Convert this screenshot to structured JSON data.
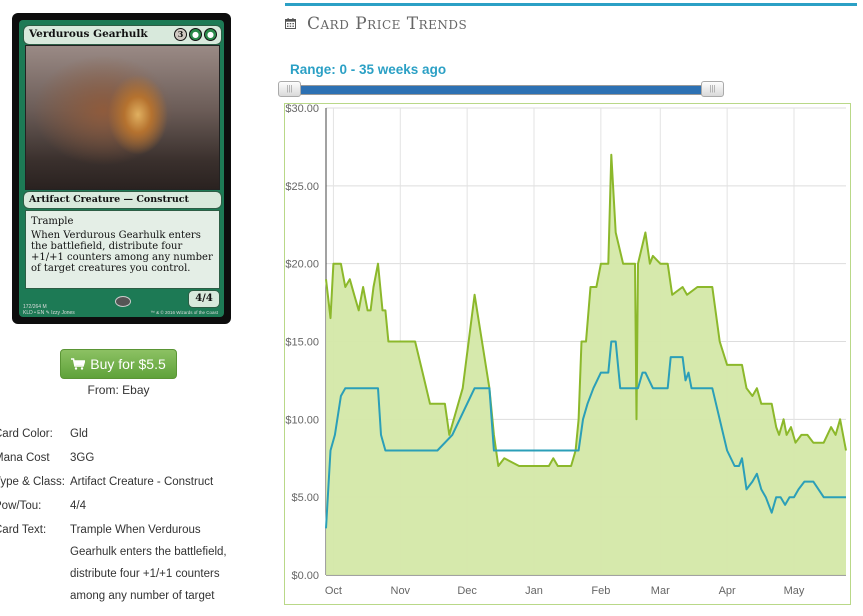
{
  "card": {
    "name": "Verdurous Gearhulk",
    "mana_generic": "3",
    "mana_pips": [
      "●",
      "●"
    ],
    "type_line": "Artifact Creature — Construct",
    "ability_keyword": "Trample",
    "ability_text": "When Verdurous Gearhulk enters the battlefield, distribute four +1/+1 counters among any number of target creatures you control.",
    "power_toughness": "4/4",
    "footer_line1": "172/264 M",
    "footer_line2": "KLD • EN ✎ Izzy Jones",
    "copyright": "™ & © 2016 Wizards of the Coast"
  },
  "buy": {
    "label": "Buy for $5.5",
    "from": "From: Ebay",
    "icon": "cart-icon"
  },
  "details": [
    {
      "label": "Card Color:",
      "value": "Gld"
    },
    {
      "label": "Mana Cost",
      "value": "3GG"
    },
    {
      "label": "Type & Class:",
      "value": "Artifact Creature - Construct"
    },
    {
      "label": "Pow/Tou:",
      "value": "4/4"
    },
    {
      "label": "Card Text:",
      "value_lines": [
        "Trample When Verdurous",
        "Gearhulk enters the battlefield,",
        "distribute four +1/+1 counters",
        "among any number of target"
      ]
    }
  ],
  "trends": {
    "title": "Card Price Trends",
    "icon": "calendar-icon",
    "range_label": "Range: 0 - 35 weeks ago",
    "range_min_weeks": 0,
    "range_max_weeks": 35,
    "slider_low_fraction": 0.0,
    "slider_high_fraction": 1.0,
    "accent_color": "#2ba0c5"
  },
  "chart_data": {
    "type": "area",
    "ylim": [
      0,
      30
    ],
    "yticks": [
      "$0.00",
      "$5.00",
      "$10.00",
      "$15.00",
      "$20.00",
      "$25.00",
      "$30.00"
    ],
    "ytick_values": [
      0,
      5,
      10,
      15,
      20,
      25,
      30
    ],
    "xlim": [
      0,
      35
    ],
    "xticks": [
      "Oct",
      "Nov",
      "Dec",
      "Jan",
      "Feb",
      "Mar",
      "Apr",
      "May"
    ],
    "xtick_positions": [
      0.5,
      5.0,
      9.5,
      14.0,
      18.5,
      22.5,
      27.0,
      31.5
    ],
    "grid": true,
    "series": [
      {
        "color": "#8cb82b",
        "fill": "#d4e8a8",
        "points": [
          [
            0.0,
            19
          ],
          [
            0.3,
            16.5
          ],
          [
            0.5,
            20
          ],
          [
            1.0,
            20
          ],
          [
            1.3,
            18.5
          ],
          [
            1.6,
            19
          ],
          [
            1.9,
            18
          ],
          [
            2.2,
            17
          ],
          [
            2.5,
            18.5
          ],
          [
            2.8,
            17
          ],
          [
            3.0,
            17
          ],
          [
            3.2,
            18.5
          ],
          [
            3.5,
            20
          ],
          [
            3.8,
            17
          ],
          [
            4.0,
            17
          ],
          [
            4.2,
            15
          ],
          [
            6.0,
            15
          ],
          [
            6.5,
            13
          ],
          [
            7.0,
            11
          ],
          [
            8.0,
            11
          ],
          [
            8.3,
            9
          ],
          [
            9.2,
            12
          ],
          [
            10.0,
            18
          ],
          [
            10.5,
            15
          ],
          [
            11.0,
            12
          ],
          [
            11.3,
            9
          ],
          [
            11.6,
            7
          ],
          [
            12.0,
            7.5
          ],
          [
            13.0,
            7
          ],
          [
            14.5,
            7
          ],
          [
            15.0,
            7
          ],
          [
            15.3,
            7.5
          ],
          [
            15.6,
            7
          ],
          [
            16.0,
            7
          ],
          [
            16.5,
            7
          ],
          [
            16.8,
            8
          ],
          [
            17.0,
            10
          ],
          [
            17.2,
            15
          ],
          [
            17.5,
            15
          ],
          [
            17.8,
            18.5
          ],
          [
            18.2,
            18.5
          ],
          [
            18.5,
            20
          ],
          [
            19.0,
            20
          ],
          [
            19.2,
            27
          ],
          [
            19.5,
            22
          ],
          [
            20.0,
            20
          ],
          [
            20.8,
            20
          ],
          [
            20.9,
            10
          ],
          [
            21.0,
            20
          ],
          [
            21.5,
            22
          ],
          [
            21.8,
            20
          ],
          [
            22.0,
            20.5
          ],
          [
            22.5,
            20
          ],
          [
            23.0,
            20
          ],
          [
            23.3,
            18
          ],
          [
            24.0,
            18.5
          ],
          [
            24.3,
            18
          ],
          [
            25.0,
            18.5
          ],
          [
            26.0,
            18.5
          ],
          [
            26.5,
            15
          ],
          [
            27.0,
            13.5
          ],
          [
            28.0,
            13.5
          ],
          [
            28.3,
            12
          ],
          [
            28.7,
            11.5
          ],
          [
            29.0,
            12
          ],
          [
            29.3,
            11
          ],
          [
            30.0,
            11
          ],
          [
            30.3,
            9.5
          ],
          [
            30.5,
            9
          ],
          [
            30.8,
            10
          ],
          [
            31.0,
            9
          ],
          [
            31.3,
            9.5
          ],
          [
            31.6,
            8.5
          ],
          [
            32.0,
            9
          ],
          [
            32.4,
            9
          ],
          [
            32.8,
            8.5
          ],
          [
            33.5,
            8.5
          ],
          [
            34.0,
            9.5
          ],
          [
            34.3,
            9
          ],
          [
            34.6,
            10
          ],
          [
            35.0,
            8
          ]
        ]
      },
      {
        "color": "#2b9fb8",
        "fill": "none",
        "points": [
          [
            0.0,
            3
          ],
          [
            0.3,
            8
          ],
          [
            0.6,
            9
          ],
          [
            1.0,
            11.5
          ],
          [
            1.3,
            12
          ],
          [
            3.5,
            12
          ],
          [
            3.7,
            9
          ],
          [
            4.0,
            8
          ],
          [
            7.5,
            8
          ],
          [
            8.5,
            9
          ],
          [
            9.5,
            11
          ],
          [
            10.0,
            12
          ],
          [
            11.0,
            12
          ],
          [
            11.3,
            8
          ],
          [
            15.5,
            8
          ],
          [
            16.0,
            8
          ],
          [
            17.0,
            8
          ],
          [
            17.3,
            10
          ],
          [
            17.6,
            11
          ],
          [
            18.0,
            12
          ],
          [
            18.5,
            13
          ],
          [
            19.0,
            13
          ],
          [
            19.2,
            15
          ],
          [
            19.5,
            15
          ],
          [
            19.8,
            12
          ],
          [
            20.5,
            12
          ],
          [
            21.0,
            12
          ],
          [
            21.3,
            13
          ],
          [
            21.5,
            13
          ],
          [
            22.0,
            12
          ],
          [
            23.0,
            12
          ],
          [
            23.2,
            14
          ],
          [
            24.0,
            14
          ],
          [
            24.2,
            12.5
          ],
          [
            24.4,
            13
          ],
          [
            24.6,
            12
          ],
          [
            25.0,
            12
          ],
          [
            26.0,
            12
          ],
          [
            27.0,
            8
          ],
          [
            27.5,
            7
          ],
          [
            27.8,
            7
          ],
          [
            28.0,
            7.5
          ],
          [
            28.3,
            5.5
          ],
          [
            28.7,
            6
          ],
          [
            29.0,
            6.5
          ],
          [
            29.3,
            5.5
          ],
          [
            29.6,
            5
          ],
          [
            30.0,
            4
          ],
          [
            30.3,
            5
          ],
          [
            30.6,
            5
          ],
          [
            30.9,
            4.5
          ],
          [
            31.2,
            5
          ],
          [
            31.5,
            5
          ],
          [
            31.8,
            5.5
          ],
          [
            32.2,
            6
          ],
          [
            32.8,
            6
          ],
          [
            33.5,
            5
          ],
          [
            35.0,
            5
          ]
        ]
      }
    ]
  }
}
